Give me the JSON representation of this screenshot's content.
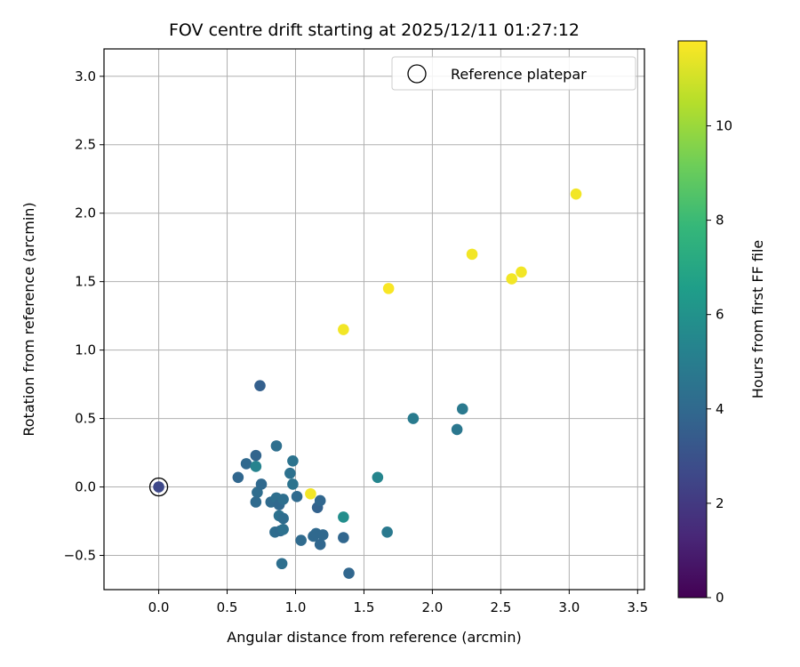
{
  "chart_data": {
    "type": "scatter",
    "title": "FOV centre drift starting at 2025/12/11 01:27:12",
    "xlabel": "Angular distance from reference (arcmin)",
    "ylabel": "Rotation from reference (arcmin)",
    "xlim": [
      -0.4,
      3.55
    ],
    "ylim": [
      -0.75,
      3.2
    ],
    "xticks": [
      "0.0",
      "0.5",
      "1.0",
      "1.5",
      "2.0",
      "2.5",
      "3.0",
      "3.5"
    ],
    "xtick_values": [
      0,
      0.5,
      1.0,
      1.5,
      2.0,
      2.5,
      3.0,
      3.5
    ],
    "yticks": [
      "−0.5",
      "0.0",
      "0.5",
      "1.0",
      "1.5",
      "2.0",
      "2.5",
      "3.0"
    ],
    "ytick_values": [
      -0.5,
      0,
      0.5,
      1.0,
      1.5,
      2.0,
      2.5,
      3.0
    ],
    "grid": true,
    "legend": {
      "label": "Reference platepar",
      "position": "top-right"
    },
    "reference_point": {
      "x": 0.0,
      "y": 0.0
    },
    "colorbar": {
      "label": "Hours from first FF file",
      "range": [
        0,
        11.8
      ],
      "ticks": [
        "0",
        "2",
        "4",
        "6",
        "8",
        "10"
      ],
      "tick_values": [
        0,
        2,
        4,
        6,
        8,
        10
      ],
      "colormap": [
        "#440154",
        "#482878",
        "#3e4989",
        "#31688e",
        "#26828e",
        "#1f9e89",
        "#35b779",
        "#6ece58",
        "#b5de2b",
        "#fde725"
      ]
    },
    "points": [
      {
        "x": 0.0,
        "y": 0.0,
        "hours": 2.6
      },
      {
        "x": 0.74,
        "y": 0.74,
        "hours": 3.6
      },
      {
        "x": 0.58,
        "y": 0.07,
        "hours": 3.9
      },
      {
        "x": 0.64,
        "y": 0.17,
        "hours": 4.0
      },
      {
        "x": 0.71,
        "y": 0.23,
        "hours": 3.8
      },
      {
        "x": 0.71,
        "y": 0.15,
        "hours": 5.3
      },
      {
        "x": 0.72,
        "y": -0.04,
        "hours": 4.2
      },
      {
        "x": 0.71,
        "y": -0.11,
        "hours": 4.1
      },
      {
        "x": 0.75,
        "y": 0.02,
        "hours": 4.0
      },
      {
        "x": 0.82,
        "y": -0.11,
        "hours": 4.1
      },
      {
        "x": 0.86,
        "y": 0.3,
        "hours": 4.3
      },
      {
        "x": 0.86,
        "y": -0.08,
        "hours": 4.3
      },
      {
        "x": 0.88,
        "y": -0.13,
        "hours": 4.0
      },
      {
        "x": 0.91,
        "y": -0.09,
        "hours": 4.3
      },
      {
        "x": 0.88,
        "y": -0.21,
        "hours": 4.4
      },
      {
        "x": 0.91,
        "y": -0.23,
        "hours": 4.2
      },
      {
        "x": 0.85,
        "y": -0.33,
        "hours": 4.2
      },
      {
        "x": 0.89,
        "y": -0.32,
        "hours": 4.1
      },
      {
        "x": 0.91,
        "y": -0.31,
        "hours": 4.4
      },
      {
        "x": 0.9,
        "y": -0.56,
        "hours": 4.3
      },
      {
        "x": 0.96,
        "y": 0.1,
        "hours": 4.4
      },
      {
        "x": 0.98,
        "y": 0.19,
        "hours": 4.5
      },
      {
        "x": 0.98,
        "y": 0.02,
        "hours": 4.5
      },
      {
        "x": 1.01,
        "y": -0.07,
        "hours": 4.1
      },
      {
        "x": 1.04,
        "y": -0.39,
        "hours": 4.1
      },
      {
        "x": 1.11,
        "y": -0.05,
        "hours": 11.6
      },
      {
        "x": 1.13,
        "y": -0.36,
        "hours": 4.0
      },
      {
        "x": 1.15,
        "y": -0.34,
        "hours": 4.0
      },
      {
        "x": 1.16,
        "y": -0.15,
        "hours": 3.7
      },
      {
        "x": 1.18,
        "y": -0.1,
        "hours": 3.9
      },
      {
        "x": 1.18,
        "y": -0.42,
        "hours": 3.9
      },
      {
        "x": 1.2,
        "y": -0.35,
        "hours": 4.0
      },
      {
        "x": 1.35,
        "y": -0.22,
        "hours": 5.8
      },
      {
        "x": 1.35,
        "y": -0.37,
        "hours": 3.9
      },
      {
        "x": 1.39,
        "y": -0.63,
        "hours": 3.9
      },
      {
        "x": 1.35,
        "y": 1.15,
        "hours": 11.6
      },
      {
        "x": 1.6,
        "y": 0.07,
        "hours": 5.4
      },
      {
        "x": 1.67,
        "y": -0.33,
        "hours": 4.8
      },
      {
        "x": 1.68,
        "y": 1.45,
        "hours": 11.7
      },
      {
        "x": 1.86,
        "y": 0.5,
        "hours": 4.9
      },
      {
        "x": 2.18,
        "y": 0.42,
        "hours": 4.7
      },
      {
        "x": 2.22,
        "y": 0.57,
        "hours": 4.8
      },
      {
        "x": 2.29,
        "y": 1.7,
        "hours": 11.6
      },
      {
        "x": 2.58,
        "y": 1.52,
        "hours": 11.6
      },
      {
        "x": 2.65,
        "y": 1.57,
        "hours": 11.6
      },
      {
        "x": 3.05,
        "y": 2.14,
        "hours": 11.6
      }
    ]
  }
}
